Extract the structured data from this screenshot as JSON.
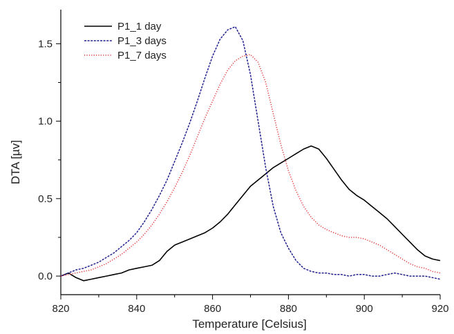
{
  "chart_data": {
    "type": "line",
    "title": "",
    "xlabel": "Temperature [Celsius]",
    "ylabel": "DTA [µv]",
    "xlim": [
      820,
      920
    ],
    "ylim": [
      -0.12,
      1.72
    ],
    "xticks": [
      820,
      840,
      860,
      880,
      900,
      920
    ],
    "yticks": [
      0.0,
      0.5,
      1.0,
      1.5
    ],
    "xtick_labels": [
      "820",
      "840",
      "860",
      "880",
      "900",
      "920"
    ],
    "ytick_labels": [
      "0.0",
      "0.5",
      "1.0",
      "1.5"
    ],
    "grid": false,
    "legend_position": "top-left",
    "series": [
      {
        "name": "P1_1 day",
        "color": "#000000",
        "style": "solid",
        "x": [
          820,
          822,
          824,
          826,
          828,
          830,
          832,
          834,
          836,
          838,
          840,
          842,
          844,
          846,
          848,
          850,
          852,
          854,
          856,
          858,
          860,
          862,
          864,
          866,
          868,
          870,
          872,
          874,
          876,
          878,
          880,
          882,
          884,
          886,
          888,
          890,
          892,
          894,
          896,
          898,
          900,
          902,
          904,
          906,
          908,
          910,
          912,
          914,
          916,
          918,
          920
        ],
        "y": [
          0.0,
          0.02,
          -0.01,
          -0.03,
          -0.02,
          -0.01,
          0.0,
          0.01,
          0.02,
          0.04,
          0.05,
          0.06,
          0.07,
          0.1,
          0.16,
          0.2,
          0.22,
          0.24,
          0.26,
          0.28,
          0.31,
          0.35,
          0.4,
          0.46,
          0.52,
          0.58,
          0.62,
          0.66,
          0.7,
          0.73,
          0.76,
          0.79,
          0.82,
          0.84,
          0.82,
          0.76,
          0.69,
          0.62,
          0.56,
          0.52,
          0.49,
          0.45,
          0.41,
          0.37,
          0.32,
          0.27,
          0.22,
          0.17,
          0.13,
          0.11,
          0.1
        ]
      },
      {
        "name": "P1_3 days",
        "color": "#1f1f8f",
        "style": "dashed",
        "x": [
          820,
          822,
          824,
          826,
          828,
          830,
          832,
          834,
          836,
          838,
          840,
          842,
          844,
          846,
          848,
          850,
          852,
          854,
          856,
          858,
          860,
          862,
          864,
          866,
          868,
          870,
          872,
          874,
          876,
          878,
          880,
          882,
          884,
          886,
          888,
          890,
          892,
          894,
          896,
          898,
          900,
          902,
          904,
          906,
          908,
          910,
          912,
          914,
          916,
          918,
          920
        ],
        "y": [
          0.0,
          0.02,
          0.04,
          0.05,
          0.07,
          0.09,
          0.12,
          0.15,
          0.19,
          0.23,
          0.28,
          0.35,
          0.43,
          0.52,
          0.62,
          0.74,
          0.86,
          0.99,
          1.13,
          1.28,
          1.42,
          1.53,
          1.59,
          1.61,
          1.52,
          1.3,
          1.0,
          0.7,
          0.45,
          0.28,
          0.18,
          0.1,
          0.05,
          0.03,
          0.02,
          0.02,
          0.01,
          0.01,
          0.0,
          0.01,
          0.01,
          0.0,
          0.0,
          0.01,
          0.02,
          0.01,
          0.0,
          0.0,
          0.0,
          -0.01,
          -0.02
        ]
      },
      {
        "name": "P1_7 days",
        "color": "#e03030",
        "style": "dotted",
        "x": [
          820,
          822,
          824,
          826,
          828,
          830,
          832,
          834,
          836,
          838,
          840,
          842,
          844,
          846,
          848,
          850,
          852,
          854,
          856,
          858,
          860,
          862,
          864,
          866,
          868,
          870,
          872,
          874,
          876,
          878,
          880,
          882,
          884,
          886,
          888,
          890,
          892,
          894,
          896,
          898,
          900,
          902,
          904,
          906,
          908,
          910,
          912,
          914,
          916,
          918,
          920
        ],
        "y": [
          0.0,
          0.01,
          0.02,
          0.03,
          0.04,
          0.06,
          0.08,
          0.11,
          0.14,
          0.18,
          0.22,
          0.27,
          0.33,
          0.4,
          0.48,
          0.57,
          0.67,
          0.78,
          0.9,
          1.02,
          1.13,
          1.24,
          1.33,
          1.39,
          1.42,
          1.43,
          1.38,
          1.25,
          1.05,
          0.85,
          0.68,
          0.55,
          0.45,
          0.38,
          0.33,
          0.3,
          0.28,
          0.26,
          0.25,
          0.25,
          0.24,
          0.22,
          0.2,
          0.17,
          0.14,
          0.11,
          0.08,
          0.06,
          0.05,
          0.03,
          0.02
        ]
      }
    ]
  }
}
